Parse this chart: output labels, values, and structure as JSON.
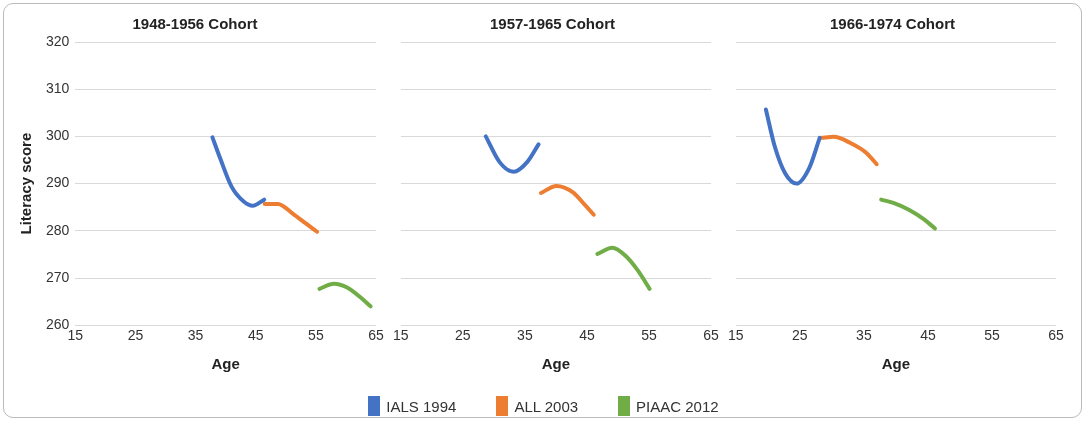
{
  "chart_data": [
    {
      "type": "line",
      "title": "1948-1956 Cohort",
      "xlabel": "Age",
      "ylabel": "Literacy score",
      "xlim": [
        15,
        65
      ],
      "xticks": [
        15,
        25,
        35,
        45,
        55,
        65
      ],
      "ylim": [
        260,
        320
      ],
      "yticks": [
        260,
        270,
        280,
        290,
        300,
        310,
        320
      ],
      "grid": "y",
      "legend": "bottom",
      "series": [
        {
          "name": "IALS 1994",
          "color": "#4472c4",
          "x": [
            37.8,
            39.1,
            41.0,
            43.0,
            44.5,
            46.4
          ],
          "values": [
            299.8,
            295.3,
            289.3,
            286.2,
            285.3,
            286.6
          ]
        },
        {
          "name": "ALL 2003",
          "color": "#ed7d31",
          "x": [
            46.5,
            48.7,
            51.2,
            53.5,
            55.2
          ],
          "values": [
            285.7,
            285.7,
            283.6,
            281.4,
            279.8
          ]
        },
        {
          "name": "PIAAC 2012",
          "color": "#70ad47",
          "x": [
            55.6,
            58.0,
            60.2,
            62.5,
            64.1
          ],
          "values": [
            267.7,
            268.8,
            268.0,
            265.8,
            264.0
          ]
        }
      ]
    },
    {
      "type": "line",
      "title": "1957-1965 Cohort",
      "xlabel": "Age",
      "xlim": [
        15,
        65
      ],
      "xticks": [
        15,
        25,
        35,
        45,
        55,
        65
      ],
      "ylim": [
        260,
        320
      ],
      "yticks": [
        260,
        270,
        280,
        290,
        300,
        310,
        320
      ],
      "tick_labels": "x",
      "grid": "y",
      "series": [
        {
          "color": "#4472c4",
          "x": [
            28.7,
            30.9,
            33.2,
            35.4,
            37.2
          ],
          "values": [
            300.0,
            294.6,
            292.5,
            294.6,
            298.3
          ]
        },
        {
          "color": "#ed7d31",
          "x": [
            37.6,
            40.1,
            42.7,
            44.6,
            46.1
          ],
          "values": [
            288.0,
            289.5,
            288.2,
            285.6,
            283.4
          ]
        },
        {
          "color": "#70ad47",
          "x": [
            46.7,
            49.1,
            51.3,
            53.2,
            55.1
          ],
          "values": [
            275.1,
            276.4,
            274.6,
            271.6,
            267.7
          ]
        }
      ]
    },
    {
      "type": "line",
      "title": "1966-1974 Cohort",
      "xlabel": "Age",
      "xlim": [
        15,
        65
      ],
      "xticks": [
        15,
        25,
        35,
        45,
        55,
        65
      ],
      "ylim": [
        260,
        320
      ],
      "yticks": [
        260,
        270,
        280,
        290,
        300,
        310,
        320
      ],
      "tick_labels": "x",
      "grid": "y",
      "series": [
        {
          "color": "#4472c4",
          "x": [
            19.7,
            21.1,
            22.7,
            24.5,
            26.5,
            28.1
          ],
          "values": [
            305.7,
            297.8,
            292.2,
            290.0,
            293.4,
            299.7
          ]
        },
        {
          "color": "#ed7d31",
          "x": [
            28.4,
            30.3,
            32.9,
            35.4,
            37.0
          ],
          "values": [
            299.7,
            299.9,
            298.6,
            296.5,
            294.1
          ]
        },
        {
          "color": "#70ad47",
          "x": [
            37.7,
            39.6,
            42.1,
            44.4,
            46.1
          ],
          "values": [
            286.6,
            285.9,
            284.4,
            282.4,
            280.5
          ]
        }
      ]
    }
  ]
}
